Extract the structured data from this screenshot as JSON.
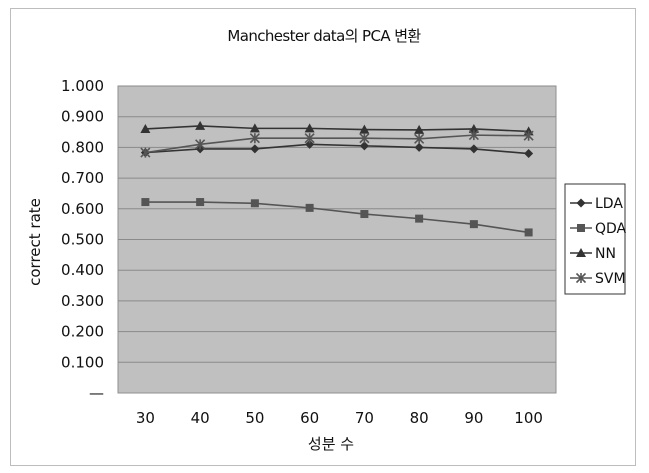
{
  "chart_data": {
    "type": "line",
    "title": "Manchester data의 PCA 변환",
    "xlabel": "성분 수",
    "ylabel": "correct rate",
    "categories": [
      "30",
      "40",
      "50",
      "60",
      "70",
      "80",
      "90",
      "100"
    ],
    "y_ticks": [
      "1.000",
      "0.900",
      "0.800",
      "0.700",
      "0.600",
      "0.500",
      "0.400",
      "0.300",
      "0.200",
      "0.100",
      "—"
    ],
    "ylim": [
      0,
      1
    ],
    "grid": true,
    "legend_position": "right",
    "plot_background": "#c0c0c0",
    "series": [
      {
        "name": "LDA",
        "marker": "diamond",
        "color": "#333333",
        "values": [
          0.783,
          0.795,
          0.795,
          0.81,
          0.805,
          0.8,
          0.795,
          0.78
        ]
      },
      {
        "name": "QDA",
        "marker": "square",
        "color": "#555555",
        "values": [
          0.622,
          0.622,
          0.618,
          0.603,
          0.583,
          0.568,
          0.55,
          0.523
        ]
      },
      {
        "name": "NN",
        "marker": "triangle",
        "color": "#333333",
        "values": [
          0.86,
          0.87,
          0.862,
          0.862,
          0.858,
          0.857,
          0.86,
          0.852
        ]
      },
      {
        "name": "SVM",
        "marker": "star",
        "color": "#555555",
        "values": [
          0.783,
          0.81,
          0.83,
          0.83,
          0.83,
          0.828,
          0.84,
          0.838
        ]
      }
    ]
  }
}
